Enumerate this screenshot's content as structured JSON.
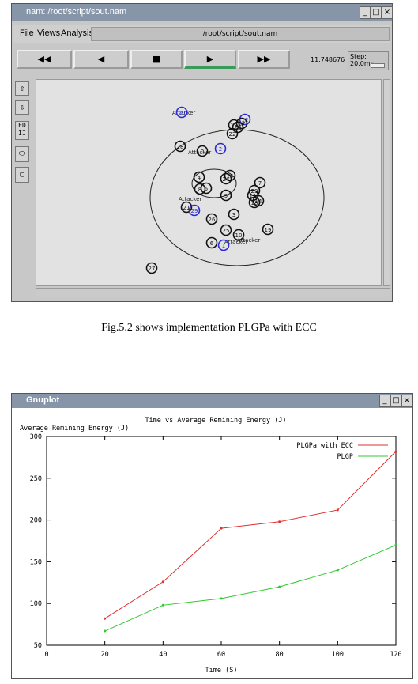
{
  "nam": {
    "title": "nam: /root/script/sout.nam",
    "window_buttons": [
      "_",
      "□",
      "×"
    ],
    "menu": [
      "File",
      "Views",
      "Analysis"
    ],
    "file_path": "/root/script/sout.nam",
    "controls": {
      "rewind": "◀◀",
      "back": "◀",
      "stop": "■",
      "play": "▶",
      "fast_forward": "▶▶"
    },
    "time": "11.748676",
    "step": "Step: 20.0ms",
    "sidebar": [
      "⇧",
      "⇩",
      "ED",
      "⬭",
      "▢"
    ],
    "nodes": [
      {
        "label": "0"
      },
      {
        "label": "1"
      },
      {
        "label": "2"
      },
      {
        "label": "3"
      },
      {
        "label": "4"
      },
      {
        "label": "5"
      },
      {
        "label": "6"
      },
      {
        "label": "7"
      },
      {
        "label": "8"
      },
      {
        "label": "9"
      },
      {
        "label": "10"
      },
      {
        "label": "11"
      },
      {
        "label": "12"
      },
      {
        "label": "13"
      },
      {
        "label": "14"
      },
      {
        "label": "15"
      },
      {
        "label": "16"
      },
      {
        "label": "17"
      },
      {
        "label": "18"
      },
      {
        "label": "19"
      },
      {
        "label": "20"
      },
      {
        "label": "21"
      },
      {
        "label": "22"
      },
      {
        "label": "23"
      },
      {
        "label": "24"
      },
      {
        "label": "25"
      },
      {
        "label": "26"
      },
      {
        "label": "27"
      },
      {
        "label": "28"
      },
      {
        "label": "29"
      }
    ],
    "annotations": [
      "Attacker",
      "Attacker",
      "Attacker",
      "Attacker",
      "Attacker"
    ],
    "node_colors": {
      "normal": "#111111",
      "attacker": "#2a2ad8"
    }
  },
  "caption": "Fig.5.2 shows implementation PLGPa  with ECC",
  "gnuplot": {
    "title": "Gnuplot",
    "window_buttons": [
      "_",
      "□",
      "×"
    ]
  },
  "chart_data": {
    "type": "line",
    "title": "Time vs Average Remining Energy (J)",
    "ylabel": "Average Remining Energy (J)",
    "xlabel": "Time (S)",
    "xlim": [
      0,
      120
    ],
    "ylim": [
      50,
      300
    ],
    "x_ticks": [
      "0",
      "20",
      "40",
      "60",
      "80",
      "100",
      "120"
    ],
    "y_ticks": [
      "50",
      "100",
      "150",
      "200",
      "250",
      "300"
    ],
    "legend_position": "top-right",
    "x": [
      20,
      40,
      60,
      80,
      100,
      120
    ],
    "series": [
      {
        "name": "PLGPa with ECC",
        "color": "#e03030",
        "values": [
          82,
          126,
          190,
          198,
          212,
          282
        ]
      },
      {
        "name": "PLGP",
        "color": "#30c830",
        "values": [
          67,
          98,
          106,
          120,
          140,
          170
        ]
      }
    ]
  }
}
